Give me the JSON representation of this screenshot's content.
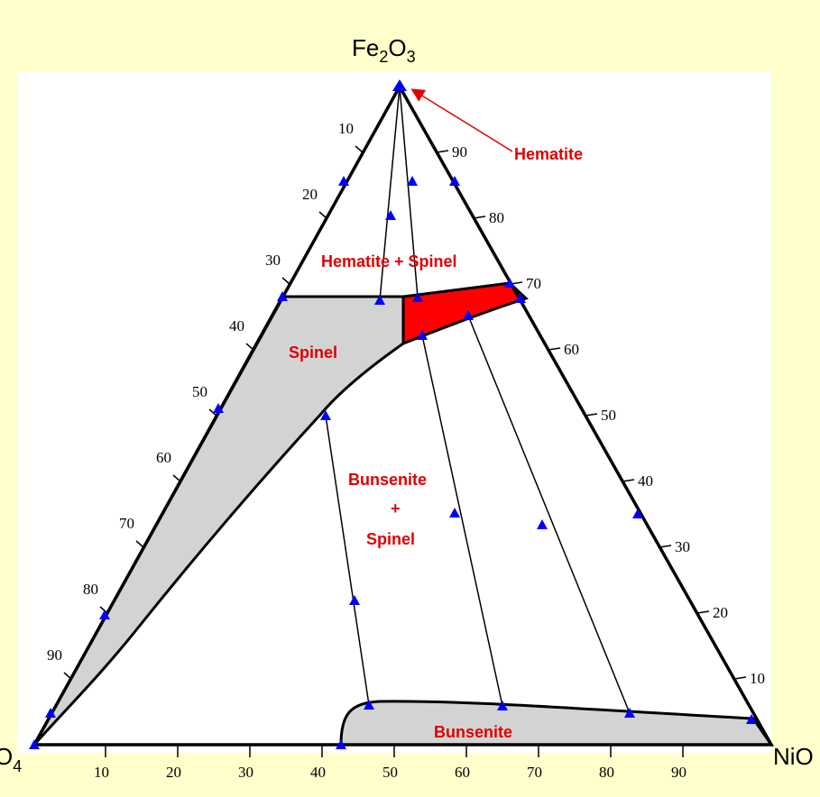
{
  "vertices": {
    "top_base": "Fe",
    "top_sub1": "2",
    "top_mid": "O",
    "top_sub2": "3",
    "left_visible": "O",
    "left_sub": "4",
    "right_visible": "NiO"
  },
  "phase_labels": {
    "hematite": "Hematite",
    "hematite_spinel": "Hematite + Spinel",
    "spinel": "Spinel",
    "bunsenite_spinel_line1": "Bunsenite",
    "bunsenite_spinel_line2": "+",
    "bunsenite_spinel_line3": "Spinel",
    "bunsenite": "Bunsenite"
  },
  "ticks": {
    "bottom": [
      "10",
      "20",
      "30",
      "40",
      "50",
      "60",
      "70",
      "80",
      "90"
    ],
    "left": [
      "10",
      "20",
      "30",
      "40",
      "50",
      "60",
      "70",
      "80",
      "90"
    ],
    "right": [
      "90",
      "80",
      "70",
      "60",
      "50",
      "40",
      "30",
      "20",
      "10"
    ]
  },
  "colors": {
    "background": "#FFFFCC",
    "plot_area": "#FFFFFF",
    "spinel_region": "#D3D3D3",
    "bunsenite_region": "#D3D3D3",
    "three_phase_region": "#FF0000",
    "label_red": "#E00000",
    "marker": "#0000FF",
    "line": "#000000"
  }
}
